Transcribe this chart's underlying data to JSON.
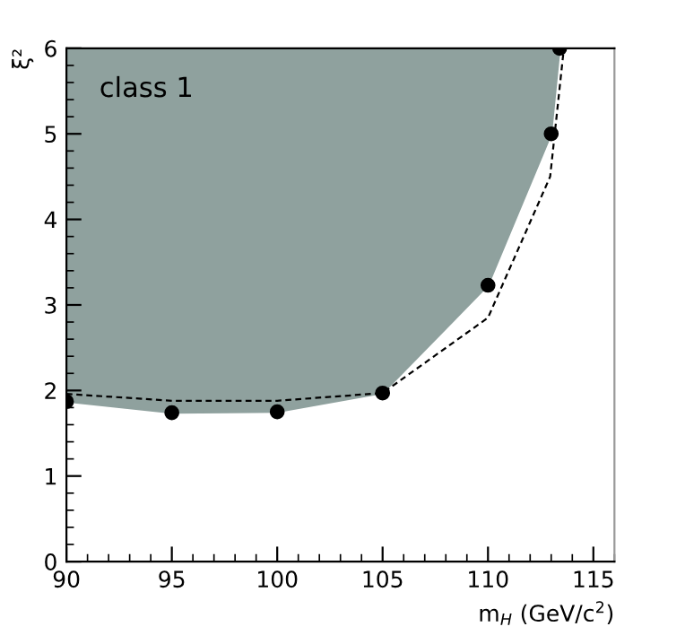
{
  "chart_data": {
    "type": "line",
    "xlabel": "m$_{H}$ (GeV/c$^{2}$)",
    "ylabel": "ξ²",
    "annotations": [
      "class 1"
    ],
    "xlim": [
      90,
      116
    ],
    "ylim": [
      0,
      6
    ],
    "xticks": [
      90,
      95,
      100,
      105,
      110,
      115
    ],
    "yticks": [
      0,
      1,
      2,
      3,
      4,
      5,
      6
    ],
    "grid": false,
    "legend": false,
    "series": [
      {
        "color": "#8fa19e",
        "marker": "none",
        "x": [
          90,
          95,
          100,
          105,
          110,
          113,
          113.4
        ],
        "values": [
          1.87,
          1.74,
          1.75,
          1.97,
          3.23,
          5.0,
          6.0
        ],
        "lower": [
          1.87,
          1.74,
          1.75,
          1.97,
          3.23,
          5.0,
          6.0
        ],
        "upper": [
          6,
          6,
          6,
          6,
          6,
          6,
          6
        ]
      },
      {
        "type": "scatter",
        "color": "#000000",
        "marker": "circle",
        "x": [
          90,
          95,
          100,
          105,
          110,
          113,
          113.4
        ],
        "values": [
          1.87,
          1.74,
          1.75,
          1.97,
          3.23,
          5.0,
          6.0
        ]
      },
      {
        "color": "#000000",
        "line_style": "dashed",
        "marker": "none",
        "x": [
          90,
          95,
          100,
          105,
          110,
          112.95,
          113.6
        ],
        "values": [
          1.96,
          1.88,
          1.88,
          1.97,
          2.85,
          4.5,
          6.0
        ]
      }
    ]
  }
}
